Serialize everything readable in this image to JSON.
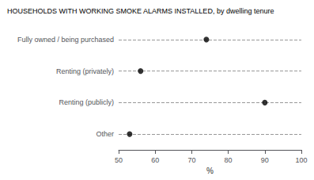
{
  "chart_data": {
    "type": "scatter",
    "title": "HOUSEHOLDS WITH WORKING SMOKE ALARMS INSTALLED, by dwelling tenure",
    "categories": [
      "Fully owned / being purchased",
      "Renting (privately)",
      "Renting (publicly)",
      "Other"
    ],
    "values": [
      74,
      56,
      90,
      53
    ],
    "color": "#000000",
    "xlabel": "%",
    "xlim": [
      50,
      100
    ],
    "xticks": [
      50,
      60,
      70,
      80,
      90,
      100
    ],
    "grid": true
  }
}
